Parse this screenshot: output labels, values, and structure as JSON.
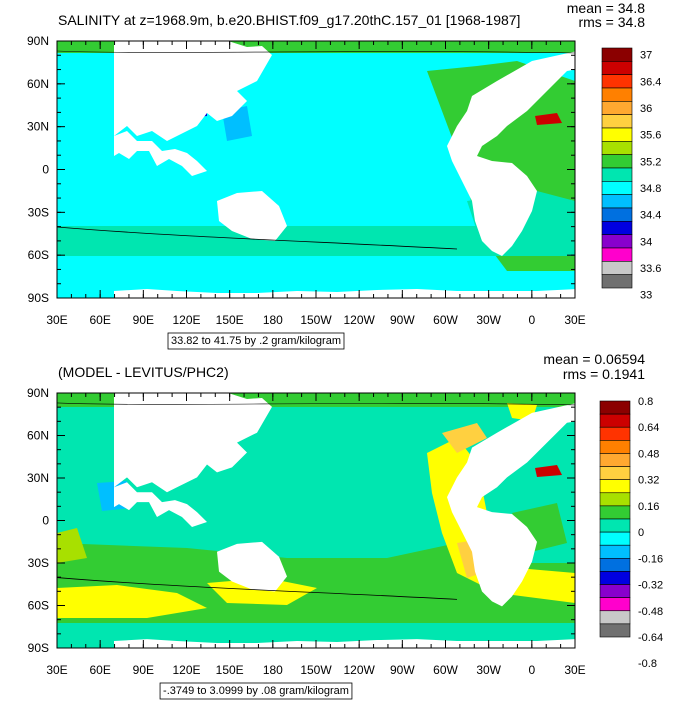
{
  "charts": [
    {
      "title": "SALINITY at z=1968.9m, b.e20.BHIST.f09_g17.20thC.157_01 [1968-1987]",
      "stats": {
        "mean": "mean = 34.8",
        "rms": "rms = 34.8"
      },
      "yticks": [
        "90N",
        "60N",
        "30N",
        "0",
        "30S",
        "60S",
        "90S"
      ],
      "xticks": [
        "30E",
        "60E",
        "90E",
        "120E",
        "150E",
        "180",
        "150W",
        "120W",
        "90W",
        "60W",
        "30W",
        "0",
        "30E"
      ],
      "range_label": "33.82 to 41.75 by .2 gram/kilogram",
      "colorbar": {
        "labels": [
          "37",
          "36.4",
          "36",
          "35.6",
          "35.2",
          "34.8",
          "34.4",
          "34",
          "33.6",
          "33"
        ],
        "colors": [
          "#8B0000",
          "#CC0000",
          "#FF3300",
          "#FF8000",
          "#FFA830",
          "#FFD040",
          "#FFFF00",
          "#A8E000",
          "#33CC33",
          "#00E6B0",
          "#00FFFF",
          "#00BFFF",
          "#0070E0",
          "#0000E0",
          "#8800CC",
          "#FF00CC",
          "#C8C8C8",
          "#707070"
        ]
      }
    },
    {
      "title": "(MODEL - LEVITUS/PHC2)",
      "stats": {
        "mean": "mean = 0.06594",
        "rms": "rms = 0.1941"
      },
      "yticks": [
        "90N",
        "60N",
        "30N",
        "0",
        "30S",
        "60S",
        "90S"
      ],
      "xticks": [
        "30E",
        "60E",
        "90E",
        "120E",
        "150E",
        "180",
        "150W",
        "120W",
        "90W",
        "60W",
        "30W",
        "0",
        "30E"
      ],
      "range_label": "-.3749 to 3.0999 by .08 gram/kilogram",
      "colorbar": {
        "labels": [
          "0.8",
          "0.64",
          "0.48",
          "0.32",
          "0.16",
          "0",
          "-0.16",
          "-0.32",
          "-0.48",
          "-0.64",
          "-0.8"
        ],
        "colors": [
          "#8B0000",
          "#CC0000",
          "#FF3300",
          "#FF8000",
          "#FFA830",
          "#FFD040",
          "#FFFF00",
          "#A8E000",
          "#33CC33",
          "#00E6B0",
          "#00FFFF",
          "#00BFFF",
          "#0070E0",
          "#0000E0",
          "#8800CC",
          "#FF00CC",
          "#C8C8C8",
          "#707070"
        ]
      }
    }
  ]
}
